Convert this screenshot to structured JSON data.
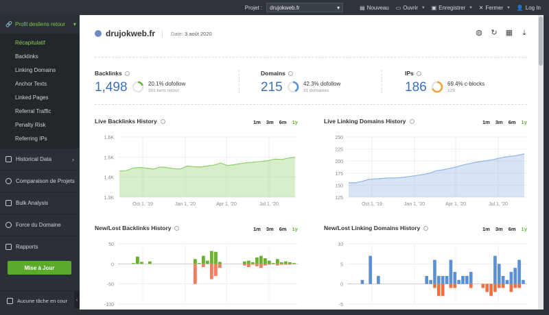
{
  "topbar": {
    "project_label": "Projet :",
    "project_value": "drujokweb.fr",
    "new_label": "Nouveau",
    "open_label": "Ouvrir",
    "save_label": "Enregistrer",
    "close_label": "Fermer",
    "login_label": "Log In"
  },
  "sidebar": {
    "head": "Profil desliens retour",
    "sub_items": [
      "Récapitulatif",
      "Backlinks",
      "Linking Domains",
      "Anchor Texts",
      "Linked Pages",
      "Referral Traffic",
      "Penalty Risk",
      "Referring IPs"
    ],
    "sections": [
      "Historical Data",
      "Comparaison de Projets",
      "Bulk Analysis",
      "Force du Domaine",
      "Rapports"
    ],
    "update_button": "Mise à Jour",
    "footer": "Aucune tâche en cour"
  },
  "header": {
    "domain": "drujokweb.fr",
    "date_label": "Date:",
    "date_value": "3 août 2020"
  },
  "stats": {
    "backlinks": {
      "title": "Backlinks",
      "value": "1,498",
      "line1": "20.1% dofollow",
      "line2": "301 liens retour",
      "percent": 20.1,
      "color": "#6bb233"
    },
    "domains": {
      "title": "Domains",
      "value": "215",
      "line1": "42.3% dofollow",
      "line2": "91 domaines",
      "percent": 42.3,
      "color": "#5b8fd6"
    },
    "ips": {
      "title": "IPs",
      "value": "186",
      "line1": "69.4% c-blocks",
      "line2": "129",
      "percent": 69.4,
      "color": "#f0a33a"
    }
  },
  "ranges": [
    "1m",
    "3m",
    "6m",
    "1y"
  ],
  "active_range": "1y",
  "chart_data": [
    {
      "type": "area",
      "title": "Live Backlinks History",
      "yticks": [
        "1.6K",
        "1.5K",
        "1.4K",
        "1.3K"
      ],
      "ylim": [
        1300,
        1600
      ],
      "xticks": [
        "Oct 1, '19",
        "Jan 1, '20",
        "Apr 1, '20",
        "Jul 1, '20"
      ],
      "series": [
        {
          "values": [
            1430,
            1432,
            1445,
            1448,
            1445,
            1440,
            1450,
            1448,
            1442,
            1440,
            1455,
            1452,
            1450,
            1455,
            1460,
            1470,
            1458,
            1462,
            1468,
            1472,
            1475,
            1478,
            1482,
            1490,
            1488,
            1495,
            1498
          ]
        }
      ],
      "color": "#8fcf6a"
    },
    {
      "type": "area",
      "title": "Live Linking Domains History",
      "yticks": [
        "250",
        "225",
        "200",
        "175",
        "150",
        "125"
      ],
      "ylim": [
        125,
        250
      ],
      "xticks": [
        "Oct 1, '19",
        "Jan 1, '20",
        "Apr 1, '20",
        "Jul 1, '20"
      ],
      "series": [
        {
          "values": [
            155,
            155,
            158,
            162,
            163,
            164,
            165,
            165,
            166,
            168,
            170,
            172,
            175,
            180,
            182,
            185,
            188,
            192,
            195,
            198,
            200,
            202,
            205,
            208,
            210,
            212,
            215
          ]
        }
      ],
      "color": "#8fb3e3"
    },
    {
      "type": "bar",
      "title": "New/Lost Backlinks History",
      "yticks": [
        "50",
        "0",
        "-50",
        "-100"
      ],
      "ylim": [
        -100,
        50
      ],
      "new": [
        0,
        0,
        0,
        2,
        18,
        5,
        0,
        6,
        0,
        0,
        0,
        0,
        0,
        0,
        0,
        0,
        0,
        0,
        12,
        2,
        20,
        8,
        32,
        30,
        5,
        0,
        0,
        0,
        0,
        0,
        6,
        8,
        4,
        16,
        20,
        14,
        8,
        2,
        12,
        4,
        6,
        4,
        2
      ],
      "lost": [
        0,
        0,
        0,
        0,
        0,
        0,
        0,
        0,
        0,
        0,
        0,
        0,
        0,
        0,
        0,
        0,
        0,
        0,
        -50,
        0,
        -8,
        0,
        -38,
        -30,
        -10,
        0,
        0,
        0,
        0,
        0,
        -4,
        -8,
        -2,
        -6,
        -10,
        -4,
        -2,
        -1,
        -4,
        -2,
        -2,
        -2,
        -1
      ],
      "color_new": "#6bb233",
      "color_lost": "#f08060"
    },
    {
      "type": "bar",
      "title": "New/Lost Linking Domains History",
      "yticks": [
        "10",
        "5",
        "0",
        "-5"
      ],
      "ylim": [
        -5,
        10
      ],
      "new": [
        0,
        0,
        0,
        1,
        0,
        7,
        0,
        2,
        0,
        0,
        0,
        0,
        0,
        0,
        0,
        0,
        0,
        0,
        0,
        2,
        1,
        6,
        2,
        2,
        2,
        6,
        3,
        1,
        2,
        2,
        3,
        0,
        0,
        0,
        0,
        0,
        7,
        5,
        2,
        1,
        3,
        4,
        6,
        1
      ],
      "lost": [
        0,
        0,
        0,
        0,
        0,
        0,
        0,
        0,
        0,
        0,
        0,
        0,
        0,
        0,
        0,
        0,
        0,
        0,
        0,
        0,
        0,
        -1,
        -3,
        -3,
        0,
        -1,
        -1,
        0,
        0,
        0,
        -1,
        0,
        0,
        -1,
        -2,
        -3,
        -2,
        -1,
        -1,
        0,
        -2,
        -1,
        -1,
        0
      ],
      "color_new": "#5b8fd6",
      "color_lost": "#f07040"
    }
  ]
}
